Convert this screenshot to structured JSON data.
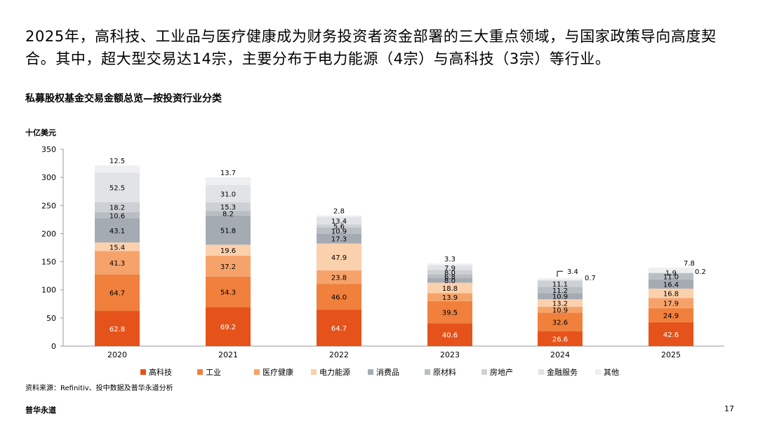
{
  "headline": "2025年，高科技、工业品与医疗健康成为财务投资者资金部署的三大重点领域，与国家政策导向高度契合。其中，超大型交易达14宗，主要分布于电力能源（4宗）与高科技（3宗）等行业。",
  "unit_label": "十亿美元",
  "source": "资料来源：Refinitiv、投中数据及普华永道分析",
  "brand": "普华永道",
  "page_number": "17",
  "chart_data": {
    "type": "bar",
    "stacked": true,
    "title": "私募股权基金交易金额总览—按投资行业分类",
    "ylabel": "十亿美元",
    "xlabel": "",
    "ylim": [
      0,
      350
    ],
    "yticks": [
      0,
      50,
      100,
      150,
      200,
      250,
      300,
      350
    ],
    "grid": false,
    "legend_position": "bottom",
    "categories": [
      "2020",
      "2021",
      "2022",
      "2023",
      "2024",
      "2025"
    ],
    "series": [
      {
        "name": "高科技",
        "color": "#e5531a",
        "values": [
          62.8,
          69.2,
          64.7,
          40.6,
          26.6,
          42.6
        ]
      },
      {
        "name": "工业",
        "color": "#f0803c",
        "values": [
          64.7,
          54.3,
          46.0,
          39.5,
          32.6,
          24.9
        ]
      },
      {
        "name": "医疗健康",
        "color": "#f6a36b",
        "values": [
          41.3,
          37.2,
          23.8,
          13.9,
          10.9,
          17.9
        ]
      },
      {
        "name": "电力能源",
        "color": "#fbd0ac",
        "values": [
          15.4,
          19.6,
          47.9,
          18.8,
          13.2,
          16.8
        ]
      },
      {
        "name": "消费品",
        "color": "#a5abb3",
        "values": [
          43.1,
          51.8,
          17.3,
          8.0,
          10.9,
          16.4
        ]
      },
      {
        "name": "原材料",
        "color": "#b9bec4",
        "values": [
          10.6,
          8.2,
          10.9,
          6.8,
          11.2,
          11.0
        ]
      },
      {
        "name": "房地产",
        "color": "#cdd1d5",
        "values": [
          18.2,
          15.3,
          5.6,
          8.0,
          11.1,
          0.2
        ]
      },
      {
        "name": "金融服务",
        "color": "#e1e3e6",
        "values": [
          52.5,
          31.0,
          13.4,
          7.9,
          0.7,
          1.9
        ]
      },
      {
        "name": "其他",
        "color": "#eeeff1",
        "values": [
          12.5,
          13.7,
          2.8,
          3.3,
          3.4,
          7.8
        ]
      }
    ]
  }
}
